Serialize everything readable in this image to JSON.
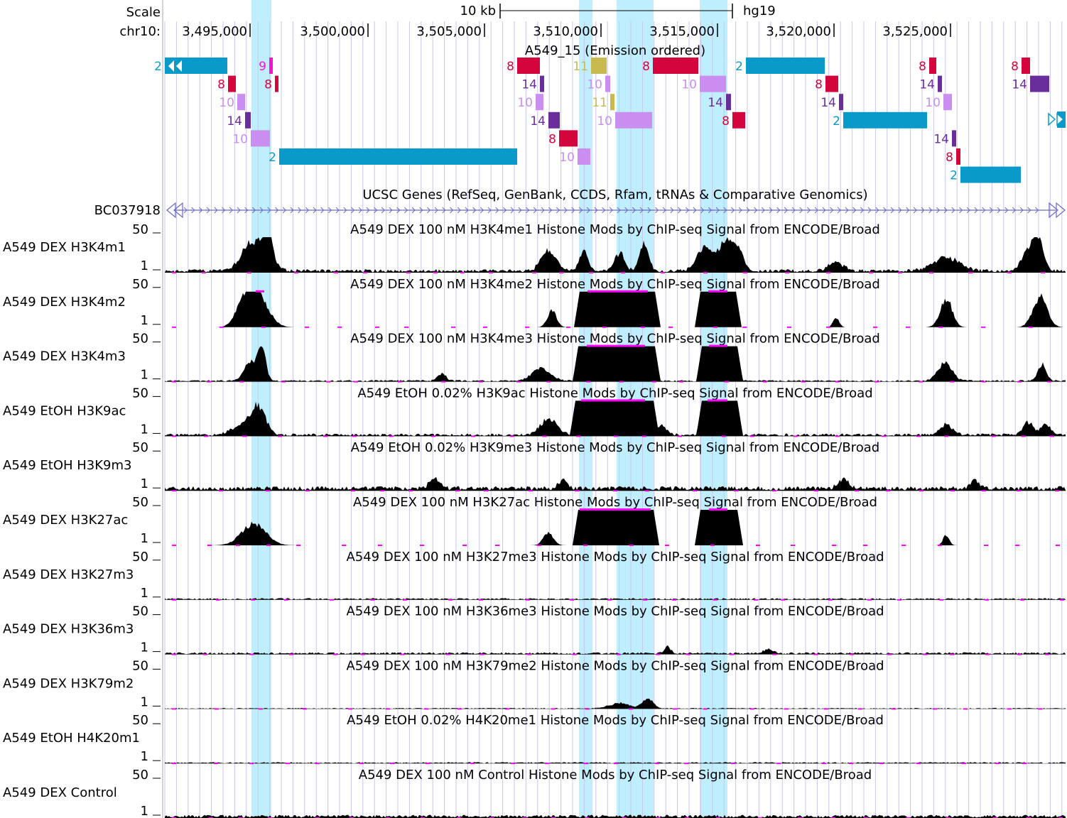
{
  "colors": {
    "highlight": "#BFEFFF",
    "gridline": "#C6C6F0",
    "signal": "#000000",
    "clip_marker": "#FF00FF",
    "gene": "#6A6AC4",
    "genes_title": "#1F3399",
    "state_colors": {
      "2": "#0A9ACA",
      "8": "#D4053C",
      "9": "#FF10CF",
      "10": "#C98EF0",
      "11": "#C8BA4E",
      "14": "#6A2D9C"
    }
  },
  "header": {
    "scale_label": "Scale",
    "scale_value": "10 kb",
    "assembly": "hg19",
    "chrom_label": "chr10:",
    "ticks": [
      "3,495,000",
      "3,500,000",
      "3,505,000",
      "3,510,000",
      "3,515,000",
      "3,520,000",
      "3,525,000"
    ]
  },
  "chromhmm": {
    "title": "A549_15 (Emission ordered)",
    "segments": [
      {
        "state": "2",
        "row": 0,
        "from": 0,
        "to": 88
      },
      {
        "state": "9",
        "row": 0,
        "from": 147,
        "to": 152
      },
      {
        "state": "8",
        "row": 0,
        "from": 496,
        "to": 528
      },
      {
        "state": "11",
        "row": 0,
        "from": 600,
        "to": 622
      },
      {
        "state": "8",
        "row": 0,
        "from": 687,
        "to": 751
      },
      {
        "state": "2",
        "row": 0,
        "from": 818,
        "to": 929
      },
      {
        "state": "8",
        "row": 0,
        "from": 1076,
        "to": 1086
      },
      {
        "state": "8",
        "row": 0,
        "from": 1206,
        "to": 1218
      },
      {
        "state": "8",
        "row": 1,
        "from": 89,
        "to": 100
      },
      {
        "state": "8",
        "row": 1,
        "from": 155,
        "to": 160
      },
      {
        "state": "14",
        "row": 1,
        "from": 528,
        "to": 534
      },
      {
        "state": "10",
        "row": 1,
        "from": 620,
        "to": 627
      },
      {
        "state": "10",
        "row": 1,
        "from": 753,
        "to": 790
      },
      {
        "state": "8",
        "row": 1,
        "from": 930,
        "to": 948
      },
      {
        "state": "14",
        "row": 1,
        "from": 1088,
        "to": 1094
      },
      {
        "state": "14",
        "row": 1,
        "from": 1218,
        "to": 1245
      },
      {
        "state": "10",
        "row": 2,
        "from": 102,
        "to": 113
      },
      {
        "state": "10",
        "row": 2,
        "from": 522,
        "to": 533
      },
      {
        "state": "11",
        "row": 2,
        "from": 627,
        "to": 633
      },
      {
        "state": "14",
        "row": 2,
        "from": 790,
        "to": 797
      },
      {
        "state": "14",
        "row": 2,
        "from": 949,
        "to": 955
      },
      {
        "state": "10",
        "row": 2,
        "from": 1096,
        "to": 1108
      },
      {
        "state": "14",
        "row": 3,
        "from": 113,
        "to": 121
      },
      {
        "state": "14",
        "row": 3,
        "from": 540,
        "to": 556
      },
      {
        "state": "10",
        "row": 3,
        "from": 634,
        "to": 686
      },
      {
        "state": "8",
        "row": 3,
        "from": 799,
        "to": 817
      },
      {
        "state": "2",
        "row": 3,
        "from": 955,
        "to": 1073
      },
      {
        "state": "10",
        "row": 4,
        "from": 121,
        "to": 148
      },
      {
        "state": "8",
        "row": 4,
        "from": 555,
        "to": 581
      },
      {
        "state": "14",
        "row": 4,
        "from": 1108,
        "to": 1114
      },
      {
        "state": "2",
        "row": 5,
        "from": 161,
        "to": 496
      },
      {
        "state": "10",
        "row": 5,
        "from": 581,
        "to": 599
      },
      {
        "state": "8",
        "row": 5,
        "from": 1114,
        "to": 1120
      },
      {
        "state": "2",
        "row": 6,
        "from": 1120,
        "to": 1205
      }
    ]
  },
  "genes": {
    "title": "UCSC Genes (RefSeq, GenBank, CCDS, Rfam, tRNAs & Comparative Genomics)",
    "gene_name": "BC037918"
  },
  "tracks": [
    {
      "label": "A549 DEX H3K4m1",
      "title": "A549 DEX 100 nM H3K4me1 Histone Mods by ChIP-seq Signal from ENCODE/Broad",
      "max": "50",
      "min": "1",
      "base": 1,
      "peaks": [
        [
          130,
          0.6,
          22
        ],
        [
          145,
          0.95,
          9
        ],
        [
          115,
          0.3,
          18
        ],
        [
          540,
          0.6,
          14
        ],
        [
          590,
          0.55,
          9
        ],
        [
          640,
          0.5,
          10
        ],
        [
          675,
          0.75,
          9
        ],
        [
          760,
          0.7,
          15
        ],
        [
          790,
          0.8,
          15
        ],
        [
          808,
          0.5,
          10
        ],
        [
          945,
          0.25,
          14
        ],
        [
          1100,
          0.4,
          25
        ],
        [
          1230,
          0.9,
          10
        ],
        [
          1215,
          0.55,
          12
        ]
      ]
    },
    {
      "label": "A549 DEX H3K4m2",
      "title": "A549 DEX 100 nM H3K4me2 Histone Mods by ChIP-seq Signal from ENCODE/Broad",
      "max": "50",
      "min": "1",
      "base": 0,
      "clips": [
        [
          128,
          140
        ],
        [
          595,
          680
        ],
        [
          765,
          792
        ]
      ],
      "plateaus": [
        [
          584,
          690
        ],
        [
          754,
          804
        ]
      ],
      "peaks": [
        [
          128,
          1,
          22
        ],
        [
          110,
          0.4,
          15
        ],
        [
          545,
          0.45,
          9
        ],
        [
          945,
          0.25,
          6
        ],
        [
          1100,
          0.8,
          12
        ],
        [
          1232,
          0.85,
          14
        ]
      ]
    },
    {
      "label": "A549 DEX H3K4m3",
      "title": "A549 DEX 100 nM H3K4me3 Histone Mods by ChIP-seq Signal from ENCODE/Broad",
      "max": "50",
      "min": "1",
      "base": 0.5,
      "clips": [
        [
          594,
          676
        ],
        [
          766,
          792
        ]
      ],
      "plateaus": [
        [
          582,
          690
        ],
        [
          756,
          806
        ]
      ],
      "peaks": [
        [
          136,
          0.95,
          8
        ],
        [
          120,
          0.5,
          12
        ],
        [
          530,
          0.35,
          18
        ],
        [
          390,
          0.2,
          8
        ],
        [
          1098,
          0.5,
          14
        ],
        [
          1235,
          0.45,
          8
        ]
      ]
    },
    {
      "label": "A549 EtOH H3K9ac",
      "title": "A549 EtOH 0.02% H3K9ac Histone Mods by ChIP-seq Signal from ENCODE/Broad",
      "max": "50",
      "min": "1",
      "base": 0.8,
      "clips": [
        [
          586,
          676
        ],
        [
          764,
          792
        ]
      ],
      "plateaus": [
        [
          578,
          688
        ],
        [
          756,
          806
        ]
      ],
      "peaks": [
        [
          132,
          0.75,
          14
        ],
        [
          110,
          0.3,
          20
        ],
        [
          540,
          0.45,
          16
        ],
        [
          700,
          0.25,
          10
        ],
        [
          1100,
          0.3,
          12
        ],
        [
          1215,
          0.35,
          10
        ],
        [
          1240,
          0.3,
          10
        ]
      ]
    },
    {
      "label": "A549 EtOH H3K9m3",
      "title": "A549 EtOH 0.02% H3K9me3 Histone Mods by ChIP-seq Signal from ENCODE/Broad",
      "max": "50",
      "min": "1",
      "base": 1.3,
      "peaks": [
        [
          380,
          0.3,
          10
        ],
        [
          560,
          0.25,
          8
        ],
        [
          955,
          0.3,
          10
        ],
        [
          1140,
          0.25,
          8
        ]
      ]
    },
    {
      "label": "A549 DEX H3K27ac",
      "title": "A549 DEX 100 nM H3K27ac Histone Mods by ChIP-seq Signal from ENCODE/Broad",
      "max": "50",
      "min": "1",
      "base": 0,
      "clips": [
        [
          584,
          684
        ],
        [
          766,
          792
        ]
      ],
      "plateaus": [
        [
          582,
          688
        ],
        [
          754,
          806
        ]
      ],
      "peaks": [
        [
          125,
          0.6,
          24
        ],
        [
          540,
          0.35,
          10
        ],
        [
          1100,
          0.3,
          6
        ]
      ]
    },
    {
      "label": "A549 DEX H3K27m3",
      "title": "A549 DEX 100 nM H3K27me3 Histone Mods by ChIP-seq Signal from ENCODE/Broad",
      "max": "50",
      "min": "1",
      "base": 0.5,
      "peaks": []
    },
    {
      "label": "A549 DEX H3K36m3",
      "title": "A549 DEX 100 nM H3K36me3 Histone Mods by ChIP-seq Signal from ENCODE/Broad",
      "max": "50",
      "min": "1",
      "base": 0.6,
      "peaks": [
        [
          708,
          0.2,
          6
        ],
        [
          850,
          0.12,
          10
        ]
      ]
    },
    {
      "label": "A549 DEX H3K79m2",
      "title": "A549 DEX 100 nM H3K79me2 Histone Mods by ChIP-seq Signal from ENCODE/Broad",
      "max": "50",
      "min": "1",
      "base": 0.3,
      "peaks": [
        [
          680,
          0.3,
          10
        ],
        [
          640,
          0.15,
          20
        ]
      ]
    },
    {
      "label": "A549 EtOH H4K20m1",
      "title": "A549 EtOH 0.02% H4K20me1 Histone Mods by ChIP-seq Signal from ENCODE/Broad",
      "max": "50",
      "min": "1",
      "base": 0.4,
      "peaks": []
    },
    {
      "label": "A549 DEX Control",
      "title": "A549 DEX 100 nM Control Histone Mods by ChIP-seq Signal from ENCODE/Broad",
      "max": "50",
      "min": "1",
      "base": 0.9,
      "peaks": []
    }
  ]
}
